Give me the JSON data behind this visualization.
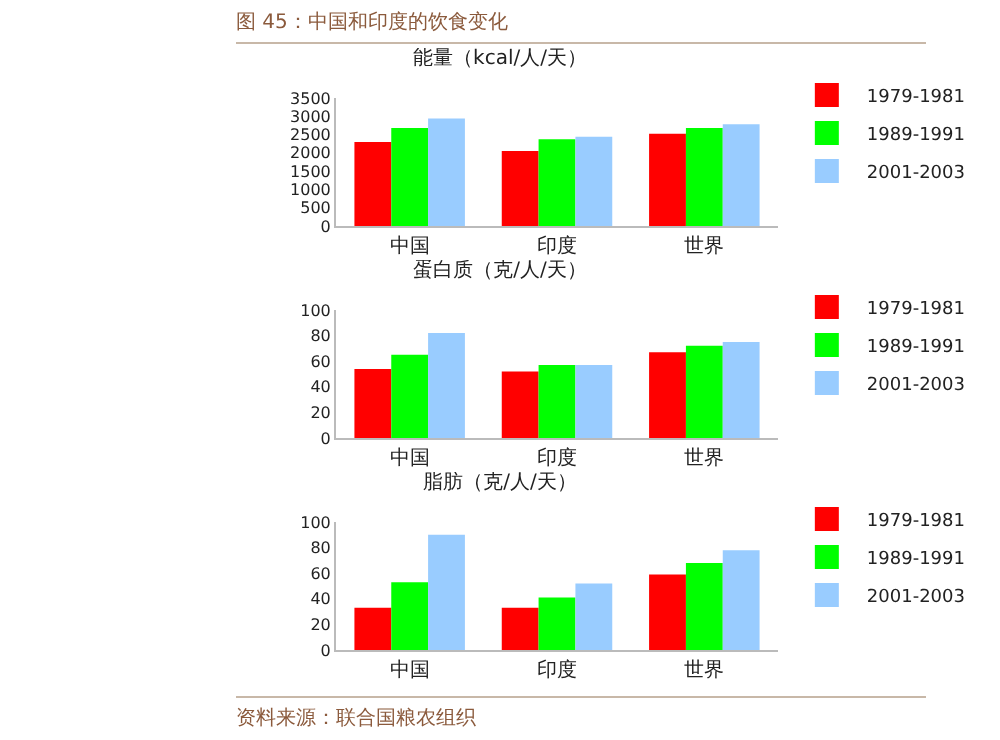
{
  "chart_data": [
    {
      "type": "bar",
      "title": "能量（kcal/人/天）",
      "categories": [
        "中国",
        "印度",
        "世界"
      ],
      "series": [
        {
          "name": "1979-1981",
          "color": "#ff0000",
          "values": [
            2300,
            2050,
            2520
          ]
        },
        {
          "name": "1989-1991",
          "color": "#00ff00",
          "values": [
            2680,
            2370,
            2680
          ]
        },
        {
          "name": "2001-2003",
          "color": "#99ccff",
          "values": [
            2940,
            2440,
            2780
          ]
        }
      ],
      "ylim": [
        0,
        3500
      ],
      "yticks": [
        0,
        500,
        1000,
        1500,
        2000,
        2500,
        3000,
        3500
      ],
      "grid": false,
      "legend": "top right",
      "annotations": [
        "图 45：中国和印度的饮食变化"
      ]
    },
    {
      "type": "bar",
      "title": "蛋白质（克/人/天）",
      "categories": [
        "中国",
        "印度",
        "世界"
      ],
      "series": [
        {
          "name": "1979-1981",
          "color": "#ff0000",
          "values": [
            54,
            52,
            67
          ]
        },
        {
          "name": "1989-1991",
          "color": "#00ff00",
          "values": [
            65,
            57,
            72
          ]
        },
        {
          "name": "2001-2003",
          "color": "#99ccff",
          "values": [
            82,
            57,
            75
          ]
        }
      ],
      "ylim": [
        0,
        100
      ],
      "yticks": [
        0,
        20,
        40,
        60,
        80,
        100
      ],
      "grid": false,
      "legend": "top right"
    },
    {
      "type": "bar",
      "title": "脂肪（克/人/天）",
      "categories": [
        "中国",
        "印度",
        "世界"
      ],
      "series": [
        {
          "name": "1979-1981",
          "color": "#ff0000",
          "values": [
            33,
            33,
            59
          ]
        },
        {
          "name": "1989-1991",
          "color": "#00ff00",
          "values": [
            53,
            41,
            68
          ]
        },
        {
          "name": "2001-2003",
          "color": "#99ccff",
          "values": [
            90,
            52,
            78
          ]
        }
      ],
      "ylim": [
        0,
        100
      ],
      "yticks": [
        0,
        20,
        40,
        60,
        80,
        100
      ],
      "grid": false,
      "legend": "top right",
      "annotations": [
        "资料来源：联合国粮农组织"
      ]
    }
  ]
}
